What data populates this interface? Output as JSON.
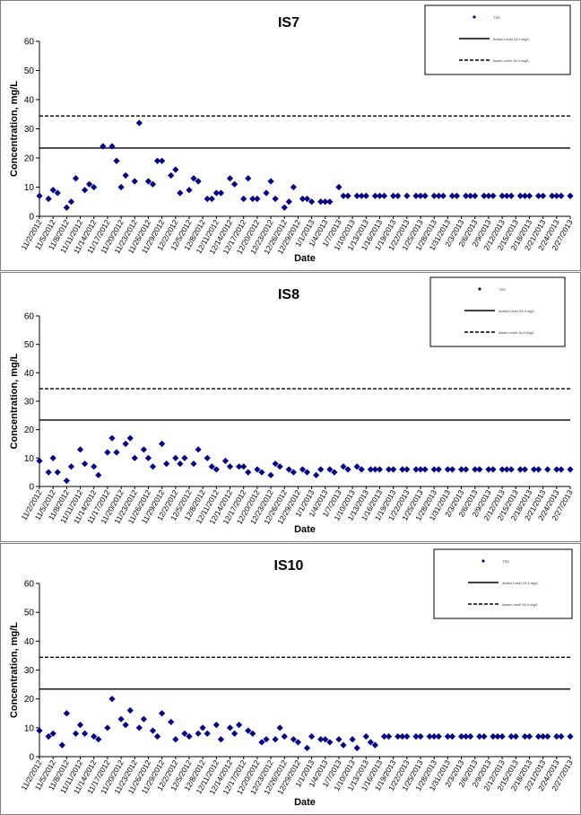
{
  "chart_data": [
    {
      "type": "scatter",
      "title": "IS7",
      "xlabel": "Date",
      "ylabel": "Concentration, mg/L",
      "ylim": [
        0,
        60
      ],
      "yticks": [
        0,
        10,
        20,
        30,
        40,
        50,
        60
      ],
      "xlim": [
        "11/2/2012",
        "2/27/2013"
      ],
      "xticks": [
        "11/2/2012",
        "11/5/2012",
        "11/8/2012",
        "11/11/2012",
        "11/14/2012",
        "11/17/2012",
        "11/20/2012",
        "11/23/2012",
        "11/26/2012",
        "11/29/2012",
        "12/2/2012",
        "12/5/2012",
        "12/8/2012",
        "12/11/2012",
        "12/14/2012",
        "12/17/2012",
        "12/20/2012",
        "12/23/2012",
        "12/26/2012",
        "12/29/2012",
        "1/1/2013",
        "1/4/2013",
        "1/7/2013",
        "1/10/2013",
        "1/13/2013",
        "1/16/2013",
        "1/19/2013",
        "1/22/2013",
        "1/25/2013",
        "1/28/2013",
        "1/31/2013",
        "2/3/2013",
        "2/6/2013",
        "2/9/2013",
        "2/12/2013",
        "2/15/2013",
        "2/18/2013",
        "2/21/2013",
        "2/24/2013",
        "2/27/2013"
      ],
      "legend": {
        "position": "top-right",
        "entries": [
          "TSS",
          "Action Level 23.4 mg/L",
          "Alarm Level 34.4 mg/L"
        ]
      },
      "reference_lines": [
        {
          "name": "Action Level 23.4 mg/L",
          "y": 23.4,
          "style": "solid"
        },
        {
          "name": "Alarm Level 34.4 mg/L",
          "y": 34.4,
          "style": "dashed"
        }
      ],
      "series": [
        {
          "name": "TSS",
          "color": "#000080",
          "x": [
            "11/2/2012",
            "11/4/2012",
            "11/5/2012",
            "11/6/2012",
            "11/8/2012",
            "11/9/2012",
            "11/10/2012",
            "11/12/2012",
            "11/13/2012",
            "11/14/2012",
            "11/16/2012",
            "11/18/2012",
            "11/19/2012",
            "11/20/2012",
            "11/21/2012",
            "11/23/2012",
            "11/24/2012",
            "11/26/2012",
            "11/27/2012",
            "11/28/2012",
            "11/29/2012",
            "12/1/2012",
            "12/2/2012",
            "12/3/2012",
            "12/5/2012",
            "12/6/2012",
            "12/7/2012",
            "12/9/2012",
            "12/10/2012",
            "12/11/2012",
            "12/12/2012",
            "12/14/2012",
            "12/15/2012",
            "12/17/2012",
            "12/18/2012",
            "12/19/2012",
            "12/20/2012",
            "12/22/2012",
            "12/23/2012",
            "12/24/2012",
            "12/26/2012",
            "12/27/2012",
            "12/28/2012",
            "12/30/2012",
            "12/31/2012",
            "1/1/2013",
            "1/3/2013",
            "1/4/2013",
            "1/5/2013",
            "1/7/2013",
            "1/8/2013",
            "1/9/2013",
            "1/11/2013",
            "1/12/2013",
            "1/13/2013",
            "1/15/2013",
            "1/16/2013",
            "1/17/2013",
            "1/19/2013",
            "1/20/2013",
            "1/22/2013",
            "1/24/2013",
            "1/25/2013",
            "1/26/2013",
            "1/28/2013",
            "1/29/2013",
            "1/30/2013",
            "2/1/2013",
            "2/2/2013",
            "2/4/2013",
            "2/5/2013",
            "2/6/2013",
            "2/8/2013",
            "2/9/2013",
            "2/10/2013",
            "2/12/2013",
            "2/13/2013",
            "2/14/2013",
            "2/16/2013",
            "2/17/2013",
            "2/18/2013",
            "2/20/2013",
            "2/21/2013",
            "2/23/2013",
            "2/24/2013",
            "2/25/2013",
            "2/27/2013"
          ],
          "y": [
            7,
            6,
            9,
            8,
            3,
            5,
            13,
            9,
            11,
            10,
            24,
            24,
            19,
            10,
            14,
            12,
            32,
            12,
            11,
            19,
            19,
            14,
            16,
            8,
            9,
            13,
            12,
            6,
            6,
            8,
            8,
            13,
            11,
            6,
            13,
            6,
            6,
            8,
            12,
            6,
            3,
            5,
            10,
            6,
            6,
            5,
            5,
            5,
            5,
            10,
            7,
            7,
            7,
            7,
            7,
            7,
            7,
            7,
            7,
            7,
            7,
            7,
            7,
            7,
            7,
            7,
            7,
            7,
            7,
            7,
            7,
            7,
            7,
            7,
            7,
            7,
            7,
            7,
            7,
            7,
            7,
            7,
            7,
            7,
            7,
            7,
            7
          ]
        }
      ]
    },
    {
      "type": "scatter",
      "title": "IS8",
      "xlabel": "Date",
      "ylabel": "Concentration, mg/L",
      "ylim": [
        0,
        60
      ],
      "yticks": [
        0,
        10,
        20,
        30,
        40,
        50,
        60
      ],
      "xlim": [
        "11/2/2012",
        "2/27/2013"
      ],
      "xticks": [
        "11/2/2012",
        "11/5/2012",
        "11/8/2012",
        "11/11/2012",
        "11/14/2012",
        "11/17/2012",
        "11/20/2012",
        "11/23/2012",
        "11/26/2012",
        "11/29/2012",
        "12/2/2012",
        "12/5/2012",
        "12/8/2012",
        "12/11/2012",
        "12/14/2012",
        "12/17/2012",
        "12/20/2012",
        "12/23/2012",
        "12/26/2012",
        "12/29/2012",
        "1/1/2013",
        "1/4/2013",
        "1/7/2013",
        "1/10/2013",
        "1/13/2013",
        "1/16/2013",
        "1/19/2013",
        "1/22/2013",
        "1/25/2013",
        "1/28/2013",
        "1/31/2013",
        "2/3/2013",
        "2/6/2013",
        "2/9/2013",
        "2/12/2013",
        "2/15/2013",
        "2/18/2013",
        "2/21/2013",
        "2/24/2013",
        "2/27/2013"
      ],
      "legend": {
        "position": "top-right",
        "entries": [
          "TSS",
          "Action Level 23.4 mg/L",
          "Alarm Level 34.4 mg/L"
        ]
      },
      "reference_lines": [
        {
          "name": "Action Level 23.4 mg/L",
          "y": 23.4,
          "style": "solid"
        },
        {
          "name": "Alarm Level 34.4 mg/L",
          "y": 34.4,
          "style": "dashed"
        }
      ],
      "series": [
        {
          "name": "TSS",
          "color": "#000080",
          "x": [
            "11/2/2012",
            "11/4/2012",
            "11/5/2012",
            "11/6/2012",
            "11/8/2012",
            "11/9/2012",
            "11/11/2012",
            "11/12/2012",
            "11/14/2012",
            "11/15/2012",
            "11/17/2012",
            "11/18/2012",
            "11/19/2012",
            "11/21/2012",
            "11/22/2012",
            "11/23/2012",
            "11/25/2012",
            "11/26/2012",
            "11/27/2012",
            "11/29/2012",
            "11/30/2012",
            "12/2/2012",
            "12/3/2012",
            "12/4/2012",
            "12/6/2012",
            "12/7/2012",
            "12/9/2012",
            "12/10/2012",
            "12/11/2012",
            "12/13/2012",
            "12/14/2012",
            "12/16/2012",
            "12/17/2012",
            "12/18/2012",
            "12/20/2012",
            "12/21/2012",
            "12/23/2012",
            "12/24/2012",
            "12/25/2012",
            "12/27/2012",
            "12/28/2012",
            "12/30/2012",
            "12/31/2012",
            "1/2/2013",
            "1/3/2013",
            "1/5/2013",
            "1/6/2013",
            "1/8/2013",
            "1/9/2013",
            "1/11/2013",
            "1/12/2013",
            "1/14/2013",
            "1/15/2013",
            "1/16/2013",
            "1/18/2013",
            "1/19/2013",
            "1/21/2013",
            "1/22/2013",
            "1/24/2013",
            "1/25/2013",
            "1/26/2013",
            "1/28/2013",
            "1/29/2013",
            "1/31/2013",
            "2/1/2013",
            "2/3/2013",
            "2/4/2013",
            "2/6/2013",
            "2/7/2013",
            "2/9/2013",
            "2/10/2013",
            "2/12/2013",
            "2/13/2013",
            "2/14/2013",
            "2/16/2013",
            "2/17/2013",
            "2/19/2013",
            "2/20/2013",
            "2/22/2013",
            "2/24/2013",
            "2/25/2013",
            "2/27/2013"
          ],
          "y": [
            9,
            5,
            10,
            5,
            2,
            7,
            13,
            8,
            7,
            4,
            12,
            17,
            12,
            15,
            17,
            10,
            13,
            10,
            7,
            15,
            8,
            10,
            8,
            10,
            8,
            13,
            10,
            7,
            6,
            9,
            7,
            7,
            7,
            5,
            6,
            5,
            4,
            8,
            7,
            6,
            5,
            6,
            5,
            4,
            6,
            6,
            5,
            7,
            6,
            7,
            6,
            6,
            6,
            6,
            6,
            6,
            6,
            6,
            6,
            6,
            6,
            6,
            6,
            6,
            6,
            6,
            6,
            6,
            6,
            6,
            6,
            6,
            6,
            6,
            6,
            6,
            6,
            6,
            6,
            6,
            6,
            6
          ]
        }
      ]
    },
    {
      "type": "scatter",
      "title": "IS10",
      "xlabel": "Date",
      "ylabel": "Concentration, mg/L",
      "ylim": [
        0,
        60
      ],
      "yticks": [
        0,
        10,
        20,
        30,
        40,
        50,
        60
      ],
      "xlim": [
        "11/2/2012",
        "2/27/2013"
      ],
      "xticks": [
        "11/2/2012",
        "11/5/2012",
        "11/8/2012",
        "11/11/2012",
        "11/14/2012",
        "11/17/2012",
        "11/20/2012",
        "11/23/2012",
        "11/26/2012",
        "11/29/2012",
        "12/2/2012",
        "12/5/2012",
        "12/8/2012",
        "12/11/2012",
        "12/14/2012",
        "12/17/2012",
        "12/20/2012",
        "12/23/2012",
        "12/26/2012",
        "12/29/2012",
        "1/1/2013",
        "1/4/2013",
        "1/7/2013",
        "1/10/2013",
        "1/13/2013",
        "1/16/2013",
        "1/19/2013",
        "1/22/2013",
        "1/25/2013",
        "1/28/2013",
        "1/31/2013",
        "2/3/2013",
        "2/6/2013",
        "2/9/2013",
        "2/12/2013",
        "2/15/2013",
        "2/18/2013",
        "2/21/2013",
        "2/24/2013",
        "2/27/2013"
      ],
      "legend": {
        "position": "top-right",
        "entries": [
          "TSS",
          "Action Level 23.4 mg/L",
          "Alarm Level 34.4 mg/L"
        ]
      },
      "reference_lines": [
        {
          "name": "Action Level 23.4 mg/L",
          "y": 23.4,
          "style": "solid"
        },
        {
          "name": "Alarm Level 34.4 mg/L",
          "y": 34.4,
          "style": "dashed"
        }
      ],
      "series": [
        {
          "name": "TSS",
          "color": "#000080",
          "x": [
            "11/2/2012",
            "11/4/2012",
            "11/5/2012",
            "11/7/2012",
            "11/8/2012",
            "11/10/2012",
            "11/11/2012",
            "11/12/2012",
            "11/14/2012",
            "11/15/2012",
            "11/17/2012",
            "11/18/2012",
            "11/20/2012",
            "11/21/2012",
            "11/22/2012",
            "11/24/2012",
            "11/25/2012",
            "11/27/2012",
            "11/28/2012",
            "11/29/2012",
            "12/1/2012",
            "12/2/2012",
            "12/4/2012",
            "12/5/2012",
            "12/7/2012",
            "12/8/2012",
            "12/9/2012",
            "12/11/2012",
            "12/12/2012",
            "12/14/2012",
            "12/15/2012",
            "12/16/2012",
            "12/18/2012",
            "12/19/2012",
            "12/21/2012",
            "12/22/2012",
            "12/24/2012",
            "12/25/2012",
            "12/26/2012",
            "12/28/2012",
            "12/29/2012",
            "12/31/2012",
            "1/1/2013",
            "1/3/2013",
            "1/4/2013",
            "1/5/2013",
            "1/7/2013",
            "1/8/2013",
            "1/10/2013",
            "1/11/2013",
            "1/13/2013",
            "1/14/2013",
            "1/15/2013",
            "1/17/2013",
            "1/18/2013",
            "1/20/2013",
            "1/21/2013",
            "1/22/2013",
            "1/24/2013",
            "1/25/2013",
            "1/27/2013",
            "1/28/2013",
            "1/29/2013",
            "1/31/2013",
            "2/1/2013",
            "2/3/2013",
            "2/4/2013",
            "2/5/2013",
            "2/7/2013",
            "2/8/2013",
            "2/10/2013",
            "2/11/2013",
            "2/12/2013",
            "2/14/2013",
            "2/15/2013",
            "2/17/2013",
            "2/18/2013",
            "2/20/2013",
            "2/21/2013",
            "2/22/2013",
            "2/24/2013",
            "2/25/2013",
            "2/27/2013"
          ],
          "y": [
            9,
            7,
            8,
            4,
            15,
            8,
            11,
            8,
            7,
            6,
            10,
            20,
            13,
            11,
            16,
            10,
            13,
            9,
            7,
            15,
            12,
            6,
            8,
            7,
            8,
            10,
            8,
            11,
            6,
            10,
            8,
            11,
            9,
            8,
            5,
            6,
            6,
            10,
            7,
            6,
            5,
            3,
            7,
            6,
            6,
            5,
            6,
            4,
            6,
            3,
            7,
            5,
            4,
            7,
            7,
            7,
            7,
            7,
            7,
            7,
            7,
            7,
            7,
            7,
            7,
            7,
            7,
            7,
            7,
            7,
            7,
            7,
            7,
            7,
            7,
            7,
            7,
            7,
            7,
            7,
            7,
            7,
            7
          ]
        }
      ]
    }
  ]
}
